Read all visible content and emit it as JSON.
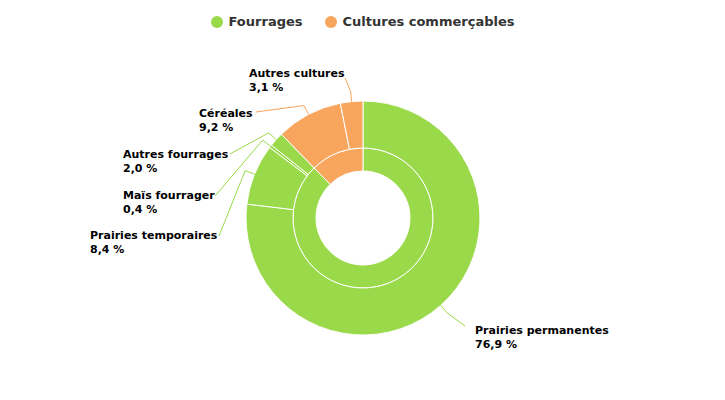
{
  "chart_data": {
    "type": "donut",
    "legend": "top",
    "groups": [
      {
        "name": "Fourrages",
        "color": "#9ad94a",
        "value": 87.7
      },
      {
        "name": "Cultures commerçables",
        "color": "#f8a55e",
        "value": 12.3
      }
    ],
    "categories": [
      "Prairies permanentes",
      "Prairies temporaires",
      "Maïs fourrager",
      "Autres fourrages",
      "Céréales",
      "Autres cultures"
    ],
    "parents": [
      "Fourrages",
      "Fourrages",
      "Fourrages",
      "Fourrages",
      "Cultures commerçables",
      "Cultures commerçables"
    ],
    "values": [
      76.9,
      8.4,
      0.4,
      2.0,
      9.2,
      3.1
    ],
    "value_labels": [
      "76,9 %",
      "8,4 %",
      "0,4 %",
      "2,0 %",
      "9,2 %",
      "3,1 %"
    ]
  }
}
